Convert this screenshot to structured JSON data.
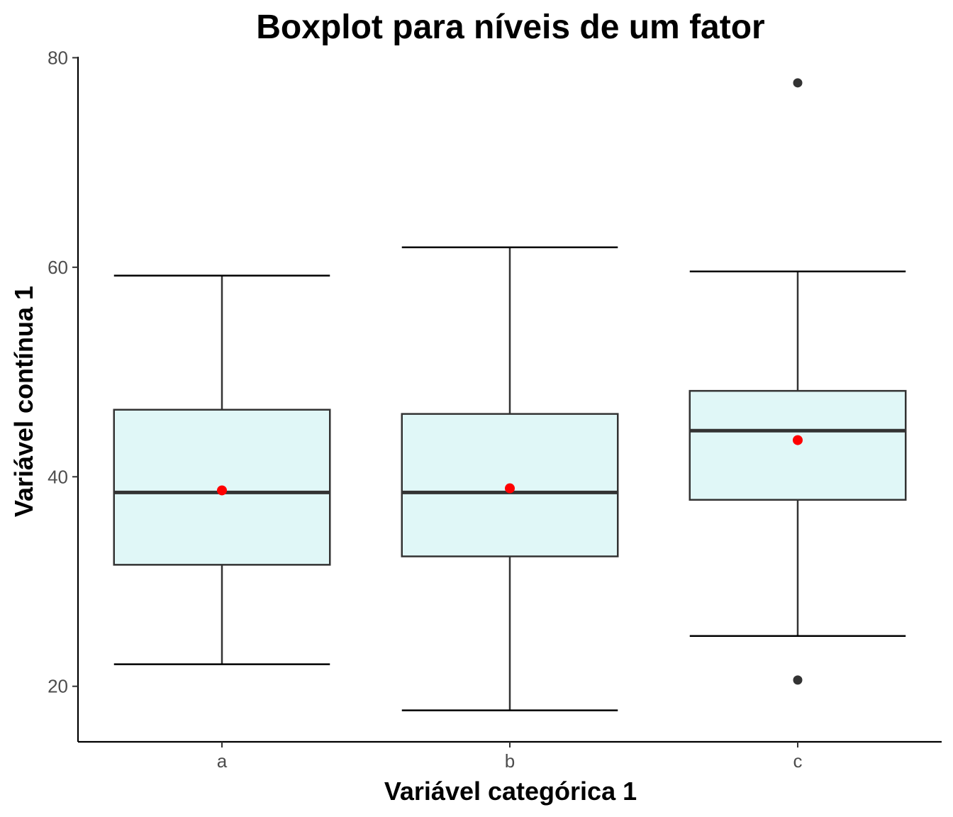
{
  "chart_data": {
    "type": "boxplot",
    "title": "Boxplot para níveis de um fator",
    "xlabel": "Variável categórica 1",
    "ylabel": "Variável contínua 1",
    "categories": [
      "a",
      "b",
      "c"
    ],
    "ylim": [
      14.7,
      80.5
    ],
    "yticks": [
      20,
      40,
      60,
      80
    ],
    "grid": false,
    "box_fill": "#e0f7f7",
    "mean_color": "#ff0000",
    "boxes": [
      {
        "category": "a",
        "whisker_low": 22.1,
        "q1": 31.6,
        "median": 38.5,
        "q3": 46.4,
        "whisker_high": 59.2,
        "mean": 38.7,
        "outliers": []
      },
      {
        "category": "b",
        "whisker_low": 17.7,
        "q1": 32.4,
        "median": 38.5,
        "q3": 46.0,
        "whisker_high": 61.9,
        "mean": 38.9,
        "outliers": []
      },
      {
        "category": "c",
        "whisker_low": 24.8,
        "q1": 37.8,
        "median": 44.4,
        "q3": 48.2,
        "whisker_high": 59.6,
        "mean": 43.5,
        "outliers": [
          77.6,
          20.6
        ]
      }
    ]
  }
}
